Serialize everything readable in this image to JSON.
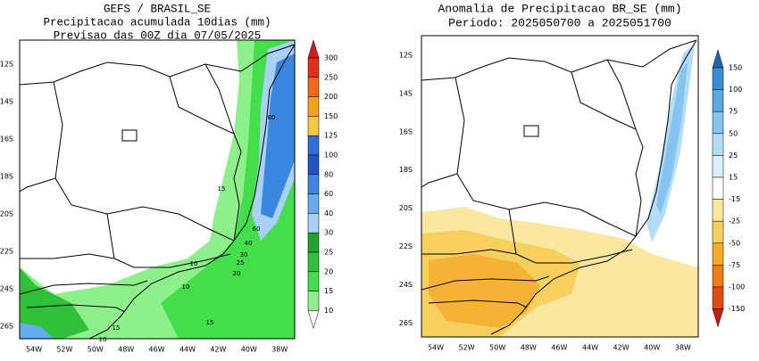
{
  "panels": [
    {
      "title_lines": [
        "GEFS / BRASIL_SE",
        "Precipitacao acumulada 10dias (mm)",
        "Previsao das 00Z dia 07/05/2025"
      ],
      "lat_labels": [
        "12S",
        "14S",
        "16S",
        "18S",
        "20S",
        "22S",
        "24S",
        "26S"
      ],
      "lon_labels": [
        "54W",
        "52W",
        "50W",
        "48W",
        "46W",
        "44W",
        "42W",
        "40W",
        "38W"
      ],
      "colorbar": {
        "labels": [
          300,
          250,
          200,
          150,
          125,
          100,
          80,
          60,
          40,
          30,
          25,
          20,
          15,
          10
        ],
        "colors": [
          "#d7191c",
          "#e0301e",
          "#ee6a1a",
          "#f4a11c",
          "#f7c744",
          "#2f6ed8",
          "#1f54c4",
          "#3a86e0",
          "#66aaf0",
          "#a9d0f5",
          "#1fa52c",
          "#2fc13a",
          "#44dd4c",
          "#8ef08a",
          "#ffffff"
        ]
      },
      "contour_labels": [
        "80",
        "15",
        "60",
        "40",
        "30",
        "25",
        "20",
        "10",
        "10",
        "15",
        "10",
        "15"
      ]
    },
    {
      "title_lines": [
        "Anomalia de Precipitacao BR_SE (mm)",
        "Periodo: 2025050700 a 2025051700"
      ],
      "lat_labels": [
        "12S",
        "14S",
        "16S",
        "18S",
        "20S",
        "22S",
        "24S",
        "26S"
      ],
      "lon_labels": [
        "54W",
        "52W",
        "50W",
        "48W",
        "46W",
        "44W",
        "42W",
        "40W",
        "38W"
      ],
      "colorbar": {
        "labels": [
          150,
          100,
          75,
          50,
          25,
          15,
          -15,
          -25,
          -50,
          -75,
          -100,
          -150
        ],
        "colors": [
          "#2166ac",
          "#3a8fd0",
          "#5aaae0",
          "#84c4ee",
          "#b3dcf6",
          "#dcf0fb",
          "#ffffff",
          "#fbe7a0",
          "#f7cf5e",
          "#f4ab2a",
          "#ee7d18",
          "#e04a14",
          "#c81e10"
        ]
      }
    }
  ]
}
